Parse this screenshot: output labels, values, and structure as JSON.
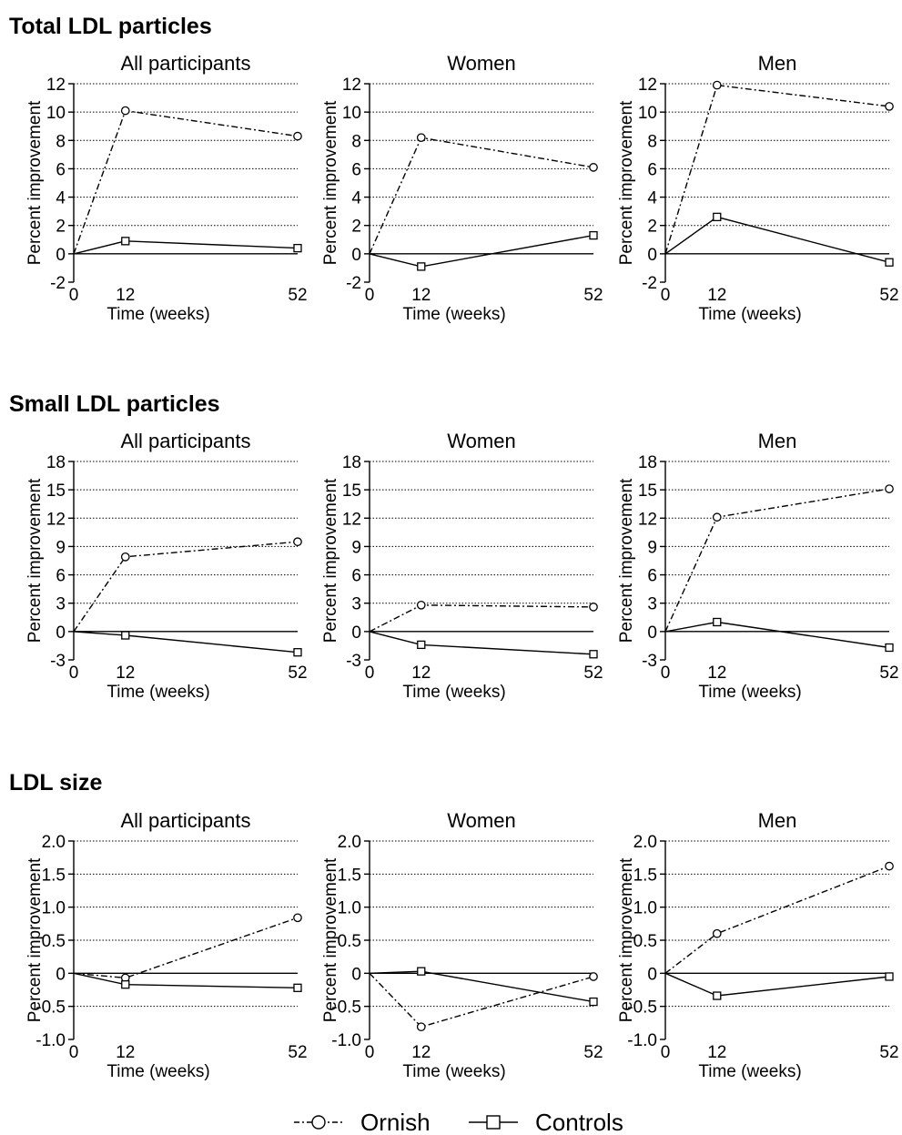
{
  "chart_data": [
    {
      "section": "Total LDL particles",
      "type": "line",
      "ylabel": "Percent improvement",
      "xlabel": "Time (weeks)",
      "x": [
        0,
        12,
        52
      ],
      "x_ticks": [
        "0",
        "12",
        "52"
      ],
      "ylim": [
        -2,
        12
      ],
      "y_ticks": [
        -2,
        0,
        2,
        4,
        6,
        8,
        10,
        12
      ],
      "y_tick_labels": [
        "-2",
        "0",
        "2",
        "4",
        "6",
        "8",
        "10",
        "12"
      ],
      "grid": "horizontal dotted",
      "panels": [
        {
          "title": "All participants",
          "series": [
            {
              "name": "Ornish",
              "values": [
                0,
                10.1,
                8.3
              ]
            },
            {
              "name": "Controls",
              "values": [
                0,
                0.9,
                0.4
              ]
            }
          ]
        },
        {
          "title": "Women",
          "series": [
            {
              "name": "Ornish",
              "values": [
                0,
                8.2,
                6.1
              ]
            },
            {
              "name": "Controls",
              "values": [
                0,
                -0.9,
                1.3
              ]
            }
          ]
        },
        {
          "title": "Men",
          "series": [
            {
              "name": "Ornish",
              "values": [
                0,
                11.9,
                10.4
              ]
            },
            {
              "name": "Controls",
              "values": [
                0,
                2.6,
                -0.6
              ]
            }
          ]
        }
      ]
    },
    {
      "section": "Small LDL particles",
      "type": "line",
      "ylabel": "Percent improvement",
      "xlabel": "Time (weeks)",
      "x": [
        0,
        12,
        52
      ],
      "x_ticks": [
        "0",
        "12",
        "52"
      ],
      "ylim": [
        -3,
        18
      ],
      "y_ticks": [
        -3,
        0,
        3,
        6,
        9,
        12,
        15,
        18
      ],
      "y_tick_labels": [
        "-3",
        "0",
        "3",
        "6",
        "9",
        "12",
        "15",
        "18"
      ],
      "grid": "horizontal dotted",
      "panels": [
        {
          "title": "All participants",
          "series": [
            {
              "name": "Ornish",
              "values": [
                0,
                7.9,
                9.5
              ]
            },
            {
              "name": "Controls",
              "values": [
                0,
                -0.4,
                -2.2
              ]
            }
          ]
        },
        {
          "title": "Women",
          "series": [
            {
              "name": "Ornish",
              "values": [
                0,
                2.8,
                2.6
              ]
            },
            {
              "name": "Controls",
              "values": [
                0,
                -1.4,
                -2.4
              ]
            }
          ]
        },
        {
          "title": "Men",
          "series": [
            {
              "name": "Ornish",
              "values": [
                0,
                12.1,
                15.1
              ]
            },
            {
              "name": "Controls",
              "values": [
                0,
                1.0,
                -1.7
              ]
            }
          ]
        }
      ]
    },
    {
      "section": "LDL size",
      "type": "line",
      "ylabel": "Percent improvement",
      "xlabel": "Time (weeks)",
      "x": [
        0,
        12,
        52
      ],
      "x_ticks": [
        "0",
        "12",
        "52"
      ],
      "ylim": [
        -1.0,
        2.0
      ],
      "y_ticks": [
        -1.0,
        -0.5,
        0,
        0.5,
        1.0,
        1.5,
        2.0
      ],
      "y_tick_labels": [
        "-1.0",
        "-0.5",
        "0",
        "0.5",
        "1.0",
        "1.5",
        "2.0"
      ],
      "grid": "horizontal dotted",
      "panels": [
        {
          "title": "All participants",
          "series": [
            {
              "name": "Ornish",
              "values": [
                0,
                -0.07,
                0.84
              ]
            },
            {
              "name": "Controls",
              "values": [
                0,
                -0.17,
                -0.22
              ]
            }
          ]
        },
        {
          "title": "Women",
          "series": [
            {
              "name": "Ornish",
              "values": [
                0,
                -0.81,
                -0.05
              ]
            },
            {
              "name": "Controls",
              "values": [
                0,
                0.03,
                -0.43
              ]
            }
          ]
        },
        {
          "title": "Men",
          "series": [
            {
              "name": "Ornish",
              "values": [
                0,
                0.6,
                1.62
              ]
            },
            {
              "name": "Controls",
              "values": [
                0,
                -0.34,
                -0.05
              ]
            }
          ]
        }
      ]
    }
  ],
  "legend": {
    "placement": "bottom-center",
    "items": [
      {
        "label": "Ornish",
        "marker": "circle",
        "line": "dash-dot"
      },
      {
        "label": "Controls",
        "marker": "square",
        "line": "solid"
      }
    ]
  },
  "colors": {
    "line": "#000000",
    "grid": "#000000",
    "background": "#ffffff"
  }
}
